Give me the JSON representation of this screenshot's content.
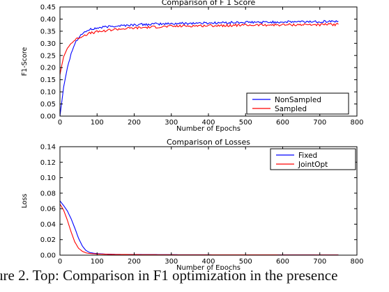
{
  "chart_data": [
    {
      "type": "line",
      "title": "Comparison of F 1 Score",
      "xlabel": "Number of Epochs",
      "ylabel": "F1-Score",
      "xlim": [
        0,
        800
      ],
      "ylim": [
        0.0,
        0.45
      ],
      "xticks": [
        "0",
        "100",
        "200",
        "300",
        "400",
        "500",
        "600",
        "700",
        "800"
      ],
      "yticks": [
        "0.00",
        "0.05",
        "0.10",
        "0.15",
        "0.20",
        "0.25",
        "0.30",
        "0.35",
        "0.40",
        "0.45"
      ],
      "legend_position": "lower-right",
      "series": [
        {
          "name": "NonSampled",
          "color": "#0000ff",
          "x": [
            0,
            5,
            10,
            20,
            30,
            40,
            50,
            60,
            70,
            80,
            100,
            125,
            150,
            200,
            250,
            300,
            350,
            400,
            450,
            500,
            550,
            600,
            650,
            700,
            750
          ],
          "y": [
            0.0,
            0.06,
            0.12,
            0.2,
            0.26,
            0.3,
            0.325,
            0.34,
            0.35,
            0.356,
            0.363,
            0.368,
            0.372,
            0.376,
            0.379,
            0.381,
            0.383,
            0.384,
            0.385,
            0.386,
            0.387,
            0.388,
            0.389,
            0.39,
            0.391
          ]
        },
        {
          "name": "Sampled",
          "color": "#ff0000",
          "x": [
            0,
            5,
            10,
            20,
            30,
            40,
            50,
            60,
            70,
            80,
            100,
            125,
            150,
            200,
            250,
            300,
            350,
            400,
            450,
            500,
            550,
            600,
            650,
            700,
            750
          ],
          "y": [
            0.17,
            0.21,
            0.245,
            0.28,
            0.3,
            0.313,
            0.322,
            0.33,
            0.336,
            0.341,
            0.347,
            0.353,
            0.358,
            0.363,
            0.367,
            0.37,
            0.372,
            0.373,
            0.374,
            0.375,
            0.376,
            0.376,
            0.377,
            0.377,
            0.378
          ]
        }
      ]
    },
    {
      "type": "line",
      "title": "Comparison of Losses",
      "xlabel": "Number of Epochs",
      "ylabel": "Loss",
      "xlim": [
        0,
        800
      ],
      "ylim": [
        0.0,
        0.14
      ],
      "xticks": [
        "0",
        "100",
        "200",
        "300",
        "400",
        "500",
        "600",
        "700",
        "800"
      ],
      "yticks": [
        "0.00",
        "0.02",
        "0.04",
        "0.06",
        "0.08",
        "0.10",
        "0.12",
        "0.14"
      ],
      "legend_position": "top-right",
      "series": [
        {
          "name": "Fixed",
          "color": "#0000ff",
          "x": [
            0,
            10,
            20,
            30,
            40,
            50,
            60,
            70,
            80,
            90,
            100,
            120,
            150,
            200,
            300,
            400,
            500,
            600,
            700,
            750
          ],
          "y": [
            0.07,
            0.064,
            0.057,
            0.047,
            0.035,
            0.022,
            0.012,
            0.006,
            0.0035,
            0.0025,
            0.002,
            0.0014,
            0.001,
            0.0008,
            0.0006,
            0.0005,
            0.0004,
            0.0004,
            0.0003,
            0.0003
          ]
        },
        {
          "name": "JointOpt",
          "color": "#ff0000",
          "x": [
            0,
            10,
            20,
            30,
            40,
            50,
            60,
            70,
            80,
            90,
            100,
            120,
            150,
            200,
            300,
            400,
            500,
            600,
            700,
            750
          ],
          "y": [
            0.066,
            0.058,
            0.045,
            0.03,
            0.017,
            0.009,
            0.005,
            0.003,
            0.0022,
            0.0018,
            0.0015,
            0.0012,
            0.0009,
            0.0007,
            0.0005,
            0.0004,
            0.0004,
            0.0003,
            0.0003,
            0.0003
          ]
        }
      ]
    }
  ],
  "caption": "ure 2. Top: Comparison in F1 optimization in the presence"
}
